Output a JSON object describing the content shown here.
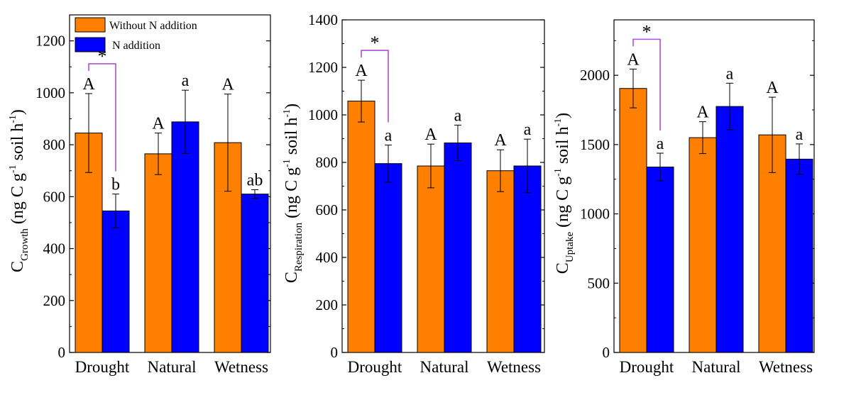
{
  "colors": {
    "without_n": "#FF7F00",
    "with_n": "#0000FF",
    "bracket": "#B04FD8",
    "axis": "#000000"
  },
  "legend": {
    "placement": "top-left of first panel",
    "items": [
      {
        "label": "Without N addition",
        "color": "#FF7F00"
      },
      {
        "label": "N addition",
        "color": "#0000FF"
      }
    ]
  },
  "chart_data": [
    {
      "type": "bar",
      "ylabel": {
        "main": "C",
        "sub": "Growth",
        "rest_a": " (ng C g",
        "sup": "-1",
        "rest_b": " soil h",
        "sup2": "-1",
        "rest_c": ")"
      },
      "ylim": [
        0,
        1300
      ],
      "yticks": [
        0,
        200,
        400,
        600,
        800,
        1000,
        1200
      ],
      "categories": [
        "Drought",
        "Natural",
        "Wetness"
      ],
      "series": [
        {
          "name": "Without N addition",
          "values": [
            845,
            765,
            808
          ],
          "errors": [
            152,
            80,
            187
          ],
          "letters": [
            "A",
            "A",
            "A"
          ]
        },
        {
          "name": "N addition",
          "values": [
            545,
            888,
            610
          ],
          "errors": [
            65,
            122,
            17
          ],
          "letters": [
            "b",
            "a",
            "ab"
          ]
        }
      ],
      "significance": [
        {
          "category": "Drought",
          "symbol": "*"
        }
      ]
    },
    {
      "type": "bar",
      "ylabel": {
        "main": "C",
        "sub": "Respiration",
        "rest_a": " (ng C g",
        "sup": "-1",
        "rest_b": " soil h",
        "sup2": "-1",
        "rest_c": ")"
      },
      "ylim": [
        0,
        1400
      ],
      "yticks": [
        0,
        200,
        400,
        600,
        800,
        1000,
        1200,
        1400
      ],
      "categories": [
        "Drought",
        "Natural",
        "Wetness"
      ],
      "series": [
        {
          "name": "Without N addition",
          "values": [
            1058,
            785,
            765
          ],
          "errors": [
            88,
            92,
            88
          ],
          "letters": [
            "A",
            "A",
            "A"
          ]
        },
        {
          "name": "N addition",
          "values": [
            795,
            882,
            785
          ],
          "errors": [
            78,
            75,
            113
          ],
          "letters": [
            "a",
            "a",
            "a"
          ]
        }
      ],
      "significance": [
        {
          "category": "Drought",
          "symbol": "*"
        }
      ]
    },
    {
      "type": "bar",
      "ylabel": {
        "main": "C",
        "sub": "Uptake",
        "rest_a": " (ng C g",
        "sup": "-1",
        "rest_b": " soil h",
        "sup2": "-1",
        "rest_c": ")"
      },
      "ylim": [
        0,
        2400
      ],
      "yticks": [
        0,
        500,
        1000,
        1500,
        2000
      ],
      "categories": [
        "Drought",
        "Natural",
        "Wetness"
      ],
      "series": [
        {
          "name": "Without N addition",
          "values": [
            1905,
            1550,
            1570
          ],
          "errors": [
            140,
            115,
            272
          ],
          "letters": [
            "A",
            "A",
            "A"
          ]
        },
        {
          "name": "N addition",
          "values": [
            1338,
            1775,
            1395
          ],
          "errors": [
            100,
            168,
            110
          ],
          "letters": [
            "a",
            "a",
            "a"
          ]
        }
      ],
      "significance": [
        {
          "category": "Drought",
          "symbol": "*"
        }
      ]
    }
  ]
}
